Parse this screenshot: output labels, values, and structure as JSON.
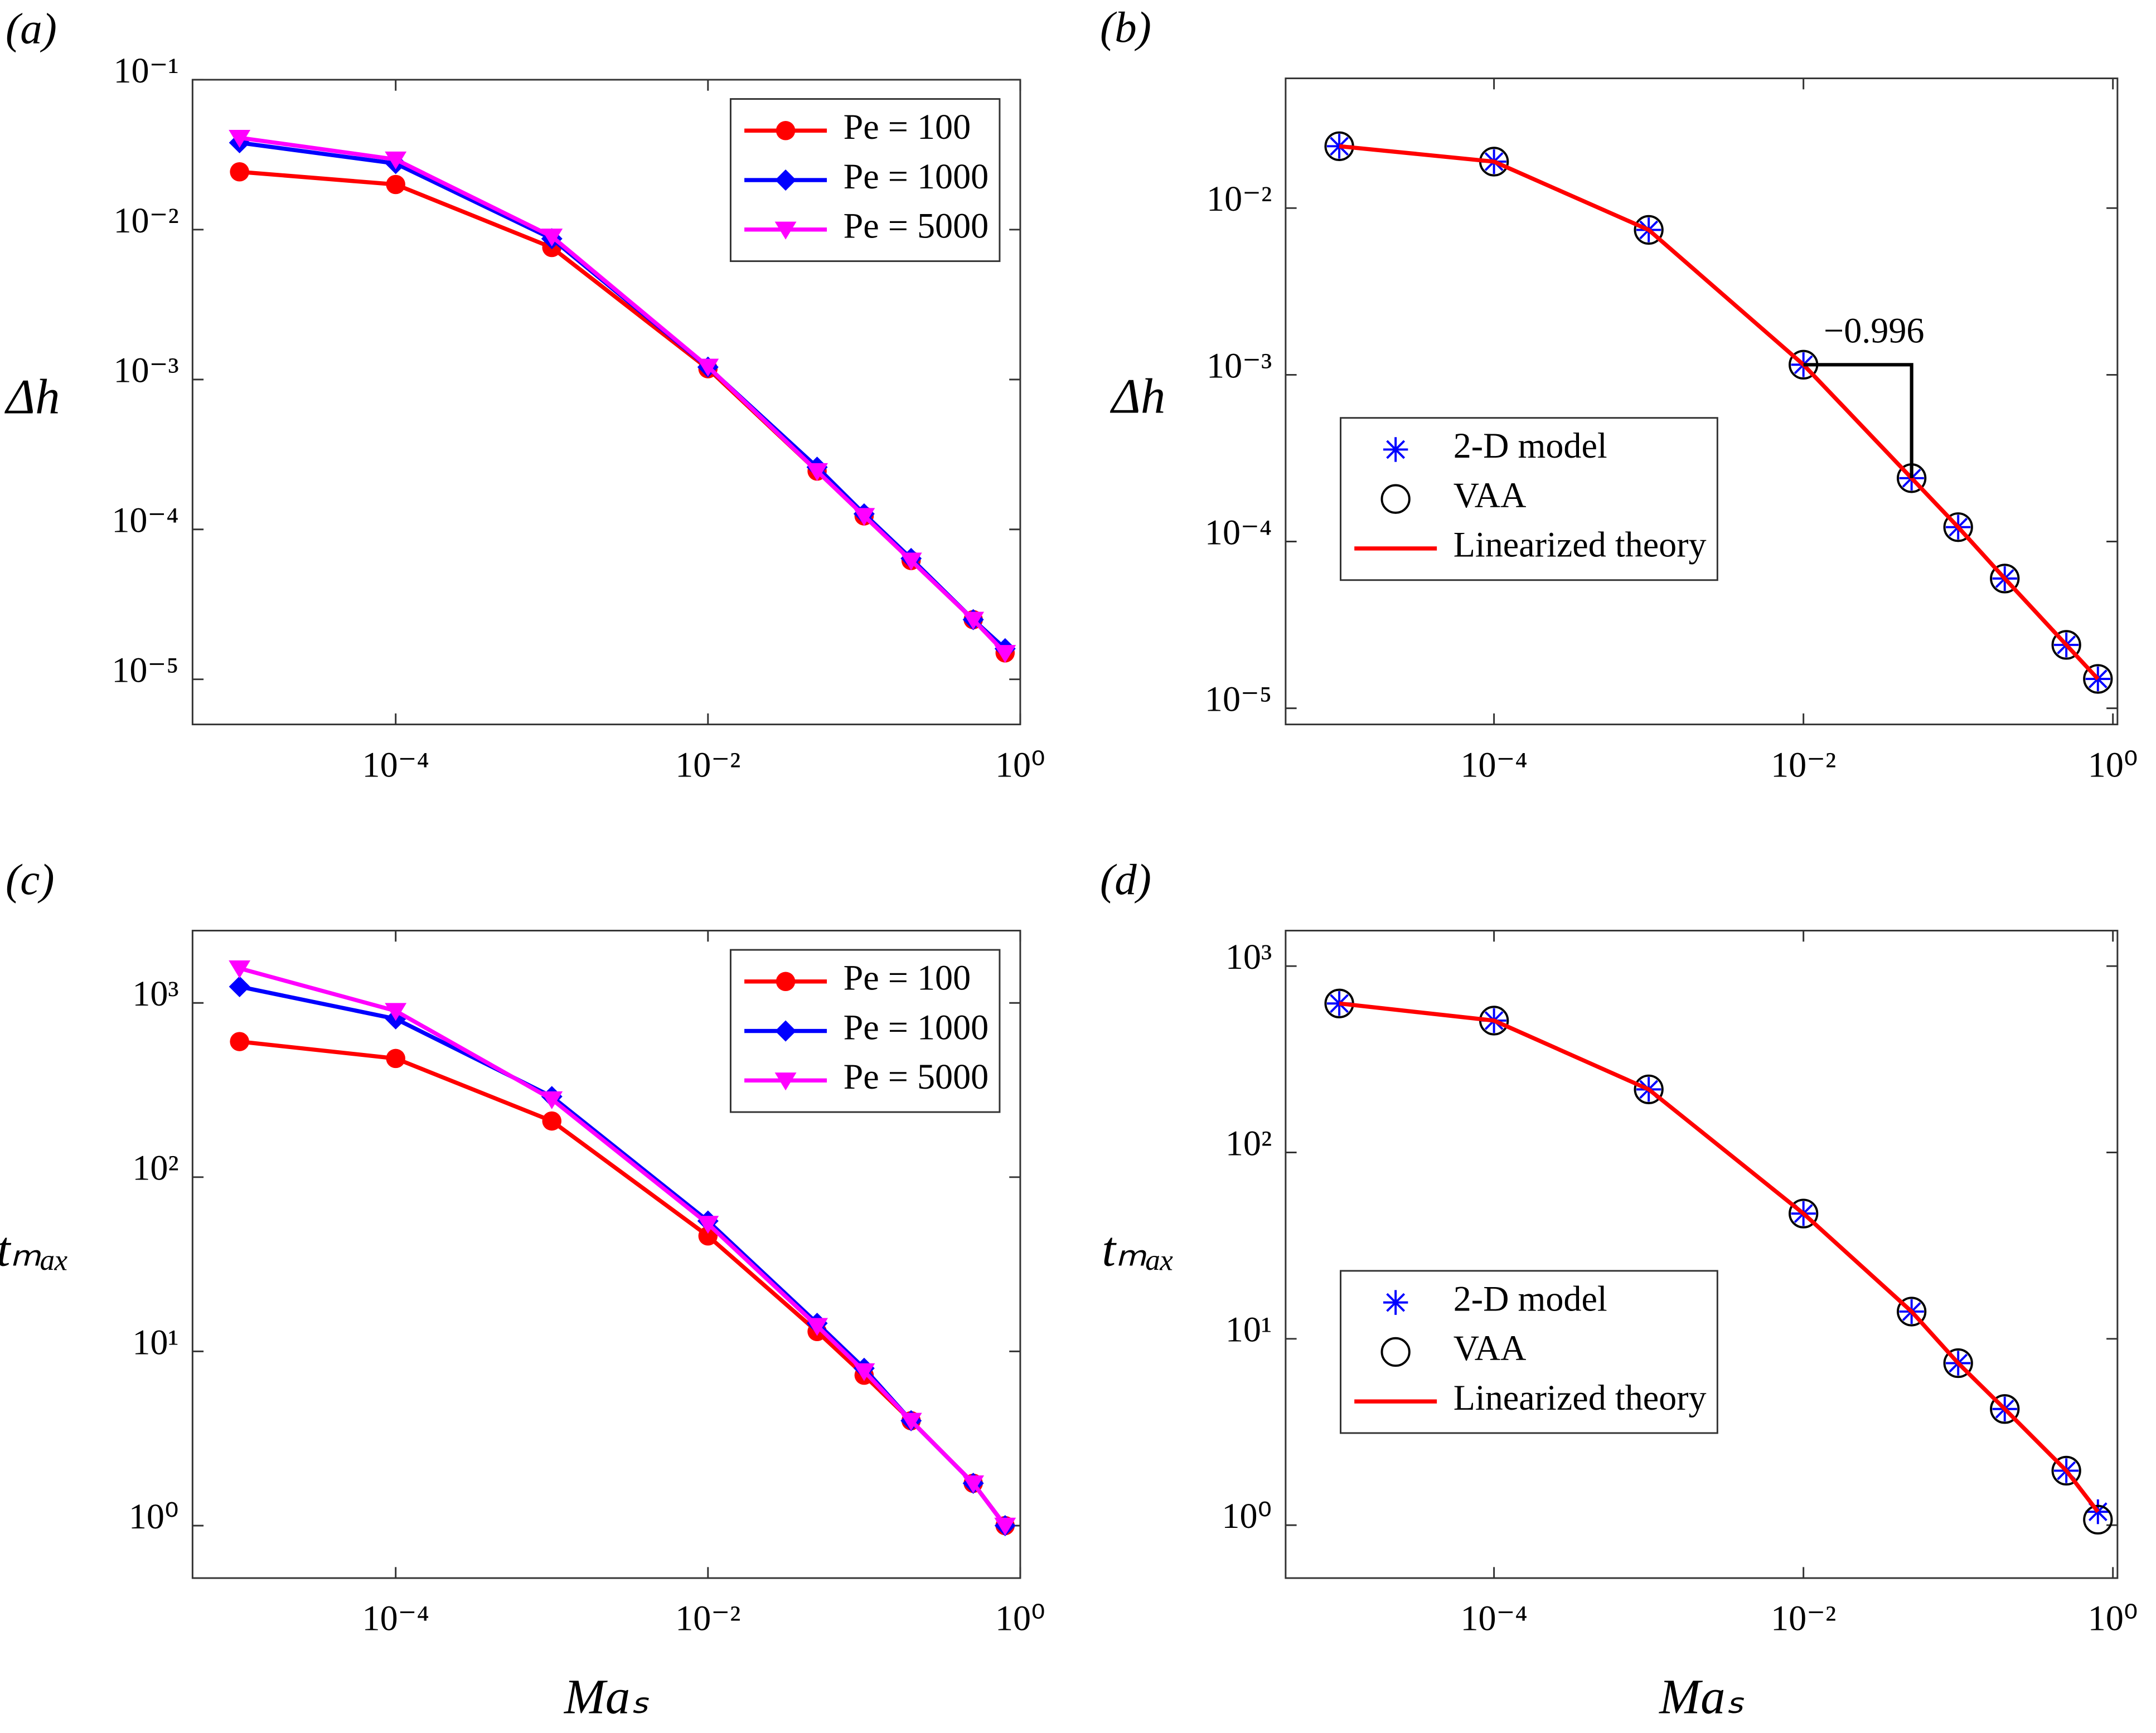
{
  "chart_data": [
    {
      "type": "line",
      "panel_label": "(a)",
      "ylabel": "Δh",
      "log_x": true,
      "log_y": true,
      "legend": "upper right",
      "box": true,
      "x": [
        1e-05,
        0.0001,
        0.001,
        0.01,
        0.05,
        0.1,
        0.2,
        0.5,
        0.8
      ],
      "xlim": [
        5e-06,
        1
      ],
      "xticks": [
        {
          "value": 0.0001,
          "label": "10⁻⁴"
        },
        {
          "value": 0.01,
          "label": "10⁻²"
        },
        {
          "value": 1,
          "label": "10⁰"
        }
      ],
      "ylim": [
        5e-06,
        0.1
      ],
      "yticks": [
        {
          "value": 1e-05,
          "label": "10⁻⁵"
        },
        {
          "value": 0.0001,
          "label": "10⁻⁴"
        },
        {
          "value": 0.001,
          "label": "10⁻³"
        },
        {
          "value": 0.01,
          "label": "10⁻²"
        },
        {
          "value": 0.1,
          "label": "10⁻¹"
        }
      ],
      "series": [
        {
          "name": "Pe = 100",
          "color": "#ff0000",
          "marker": "circle",
          "line": true,
          "values": [
            0.0243,
            0.02,
            0.0076,
            0.00118,
            0.000245,
            0.000123,
            6.2e-05,
            2.5e-05,
            1.5e-05
          ]
        },
        {
          "name": "Pe = 1000",
          "color": "#0000ff",
          "marker": "diamond",
          "line": true,
          "values": [
            0.038,
            0.0276,
            0.0087,
            0.00121,
            0.00026,
            0.000127,
            6.4e-05,
            2.5e-05,
            1.6e-05
          ]
        },
        {
          "name": "Pe = 5000",
          "color": "#ff00ff",
          "marker": "triangle-down",
          "line": true,
          "values": [
            0.041,
            0.0294,
            0.009,
            0.00122,
            0.000245,
            0.000123,
            6.2e-05,
            2.5e-05,
            1.5e-05
          ]
        }
      ]
    },
    {
      "type": "line",
      "panel_label": "(b)",
      "ylabel": "Δh",
      "log_x": true,
      "log_y": true,
      "legend": "center left",
      "box": true,
      "annotation": "−0.996",
      "x": [
        1e-05,
        0.0001,
        0.001,
        0.01,
        0.05,
        0.1,
        0.2,
        0.5,
        0.8
      ],
      "xlim": [
        4.5e-06,
        1.07
      ],
      "xticks": [
        {
          "value": 0.0001,
          "label": "10⁻⁴"
        },
        {
          "value": 0.01,
          "label": "10⁻²"
        },
        {
          "value": 1,
          "label": "10⁰"
        }
      ],
      "ylim": [
        8e-06,
        0.06
      ],
      "yticks": [
        {
          "value": 1e-05,
          "label": "10⁻⁵"
        },
        {
          "value": 0.0001,
          "label": "10⁻⁴"
        },
        {
          "value": 0.001,
          "label": "10⁻³"
        },
        {
          "value": 0.01,
          "label": "10⁻²"
        }
      ],
      "series": [
        {
          "name": "2-D model",
          "color": "#0000ff",
          "marker": "asterisk",
          "line": false,
          "values": [
            0.0235,
            0.019,
            0.0074,
            0.00115,
            0.00024,
            0.000122,
            6e-05,
            2.4e-05,
            1.5e-05
          ]
        },
        {
          "name": "VAA",
          "color": "#000000",
          "marker": "open-circle",
          "line": false,
          "values": [
            0.0235,
            0.019,
            0.0074,
            0.00115,
            0.00024,
            0.000122,
            6e-05,
            2.4e-05,
            1.5e-05
          ]
        },
        {
          "name": "Linearized theory",
          "color": "#ff0000",
          "marker": "none",
          "line": true,
          "values": [
            0.0235,
            0.019,
            0.0074,
            0.00115,
            0.00024,
            0.000122,
            6e-05,
            2.4e-05,
            1.5e-05
          ]
        }
      ]
    },
    {
      "type": "line",
      "panel_label": "(c)",
      "xlabel": "Maₛ",
      "ylabel": "tₘₐₓ",
      "log_x": true,
      "log_y": true,
      "legend": "upper right",
      "box": true,
      "x": [
        1e-05,
        0.0001,
        0.001,
        0.01,
        0.05,
        0.1,
        0.2,
        0.5,
        0.8
      ],
      "xlim": [
        5e-06,
        1
      ],
      "xticks": [
        {
          "value": 0.0001,
          "label": "10⁻⁴"
        },
        {
          "value": 0.01,
          "label": "10⁻²"
        },
        {
          "value": 1,
          "label": "10⁰"
        }
      ],
      "ylim": [
        0.5,
        2600
      ],
      "yticks": [
        {
          "value": 1,
          "label": "10⁰"
        },
        {
          "value": 10,
          "label": "10¹"
        },
        {
          "value": 100,
          "label": "10²"
        },
        {
          "value": 1000,
          "label": "10³"
        }
      ],
      "series": [
        {
          "name": "Pe = 100",
          "color": "#ff0000",
          "marker": "circle",
          "line": true,
          "values": [
            600,
            480,
            210,
            46,
            13,
            7.3,
            4.0,
            1.75,
            1.0
          ]
        },
        {
          "name": "Pe = 1000",
          "color": "#0000ff",
          "marker": "diamond",
          "line": true,
          "values": [
            1240,
            810,
            290,
            56,
            14.5,
            8,
            4,
            1.75,
            1.0
          ]
        },
        {
          "name": "Pe = 5000",
          "color": "#ff00ff",
          "marker": "triangle-down",
          "line": true,
          "values": [
            1580,
            900,
            280,
            54,
            14,
            7.7,
            4,
            1.75,
            1.0
          ]
        }
      ]
    },
    {
      "type": "line",
      "panel_label": "(d)",
      "xlabel": "Maₛ",
      "ylabel": "tₘₐₓ",
      "log_x": true,
      "log_y": true,
      "legend": "center left",
      "box": true,
      "x": [
        1e-05,
        0.0001,
        0.001,
        0.01,
        0.05,
        0.1,
        0.2,
        0.5,
        0.8
      ],
      "xlim": [
        4.5e-06,
        1.07
      ],
      "xticks": [
        {
          "value": 0.0001,
          "label": "10⁻⁴"
        },
        {
          "value": 0.01,
          "label": "10⁻²"
        },
        {
          "value": 1,
          "label": "10⁰"
        }
      ],
      "ylim": [
        0.52,
        1550
      ],
      "yticks": [
        {
          "value": 1,
          "label": "10⁰"
        },
        {
          "value": 10,
          "label": "10¹"
        },
        {
          "value": 100,
          "label": "10²"
        },
        {
          "value": 1000,
          "label": "10³"
        }
      ],
      "series": [
        {
          "name": "2-D model",
          "color": "#0000ff",
          "marker": "asterisk",
          "line": false,
          "values": [
            630,
            510,
            218,
            47,
            14,
            7.4,
            4.2,
            1.96,
            1.18
          ]
        },
        {
          "name": "VAA",
          "color": "#000000",
          "marker": "open-circle",
          "line": false,
          "values": [
            630,
            510,
            218,
            47,
            14,
            7.4,
            4.2,
            1.96,
            1.07
          ]
        },
        {
          "name": "Linearized theory",
          "color": "#ff0000",
          "marker": "none",
          "line": true,
          "values": [
            630,
            510,
            218,
            47,
            14,
            7.4,
            4.2,
            1.96,
            1.18
          ]
        }
      ]
    }
  ]
}
